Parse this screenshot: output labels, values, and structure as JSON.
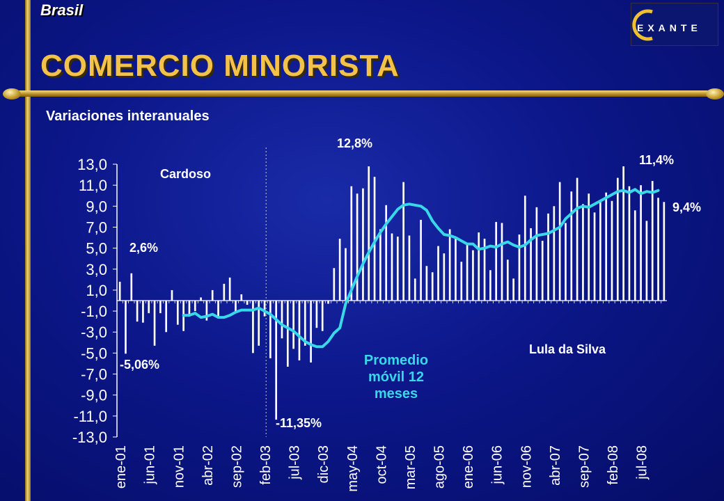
{
  "header": {
    "country": "Brasil",
    "title": "COMERCIO MINORISTA",
    "logo_text": "EXANTE"
  },
  "subtitle": "Variaciones interanuales",
  "annotations": {
    "cardoso": "Cardoso",
    "lula": "Lula da Silva",
    "moving_average": "Promedio móvil 12 meses",
    "first_max": "2,6%",
    "first_min": "-5,06%",
    "overall_min": "-11,35%",
    "overall_max": "12,8%",
    "recent_max": "11,4%",
    "last_value": "9,4%"
  },
  "colors": {
    "background": "#08107a",
    "title": "#f3c24a",
    "moving_average": "#38d8e8",
    "bars": "#ffffff",
    "gold": "#d8b24a"
  },
  "chart_data": {
    "type": "bar",
    "title": "",
    "xlabel": "",
    "ylabel": "",
    "ylim": [
      -13,
      13
    ],
    "yticks": [
      "13,0",
      "11,0",
      "9,0",
      "7,0",
      "5,0",
      "3,0",
      "1,0",
      "-1,0",
      "-3,0",
      "-5,0",
      "-7,0",
      "-9,0",
      "-11,0",
      "-13,0"
    ],
    "x_tick_labels": [
      "ene-01",
      "jun-01",
      "nov-01",
      "abr-02",
      "sep-02",
      "feb-03",
      "jul-03",
      "dic-03",
      "may-04",
      "oct-04",
      "mar-05",
      "ago-05",
      "ene-06",
      "jun-06",
      "nov-06",
      "abr-07",
      "sep-07",
      "feb-08",
      "jul-08"
    ],
    "x_tick_every": 5,
    "grid": false,
    "series": [
      {
        "name": "",
        "type": "bar",
        "values": [
          1.8,
          -5.06,
          2.6,
          -2.0,
          -2.1,
          -1.2,
          -4.3,
          -1.2,
          -3.0,
          1.0,
          -2.3,
          -2.9,
          -1.4,
          -1.0,
          0.3,
          -1.9,
          1.0,
          -1.7,
          1.6,
          2.2,
          -1.2,
          0.6,
          -0.4,
          -5.0,
          -4.3,
          -1.5,
          -5.5,
          -11.35,
          -3.6,
          -6.3,
          -4.6,
          -5.7,
          -4.3,
          -5.9,
          -2.6,
          -2.9,
          -0.3,
          3.1,
          5.9,
          5.0,
          10.9,
          10.2,
          10.7,
          12.8,
          11.8,
          6.8,
          9.1,
          6.4,
          6.1,
          11.3,
          6.2,
          2.1,
          7.7,
          3.3,
          2.7,
          5.2,
          4.5,
          6.8,
          6.1,
          3.7,
          5.3,
          4.8,
          6.5,
          5.9,
          2.9,
          7.5,
          7.4,
          3.9,
          2.1,
          6.3,
          10.0,
          6.9,
          8.9,
          5.7,
          8.3,
          9.0,
          11.3,
          7.4,
          10.4,
          11.7,
          9.2,
          10.2,
          8.4,
          9.6,
          10.3,
          9.5,
          11.7,
          12.8,
          10.9,
          8.6,
          11.0,
          7.6,
          11.4,
          9.8,
          9.4
        ]
      },
      {
        "name": "",
        "type": "line",
        "start_index": 11,
        "values": [
          -1.4,
          -1.4,
          -1.2,
          -1.6,
          -1.5,
          -1.3,
          -1.6,
          -1.6,
          -1.4,
          -1.1,
          -0.9,
          -0.9,
          -0.9,
          -0.7,
          -1.0,
          -1.3,
          -1.8,
          -2.3,
          -2.6,
          -2.9,
          -3.4,
          -3.9,
          -4.2,
          -4.4,
          -4.4,
          -3.9,
          -3.1,
          -2.6,
          -0.3,
          1.0,
          2.3,
          3.5,
          4.6,
          5.6,
          6.5,
          7.3,
          8.0,
          8.7,
          9.1,
          9.2,
          9.1,
          9.0,
          8.6,
          7.6,
          6.9,
          6.3,
          6.2,
          6.0,
          5.7,
          5.4,
          5.4,
          4.9,
          5.0,
          5.2,
          5.1,
          5.4,
          5.6,
          5.3,
          5.1,
          5.3,
          5.8,
          6.2,
          6.3,
          6.4,
          6.7,
          7.0,
          7.8,
          8.3,
          8.8,
          9.0,
          8.9,
          9.2,
          9.5,
          9.8,
          10.1,
          10.4,
          10.5,
          10.3,
          10.6,
          10.2,
          10.4,
          10.3,
          10.5
        ]
      }
    ],
    "dividers": [
      {
        "after_index": 25,
        "style": "dotted"
      }
    ]
  }
}
